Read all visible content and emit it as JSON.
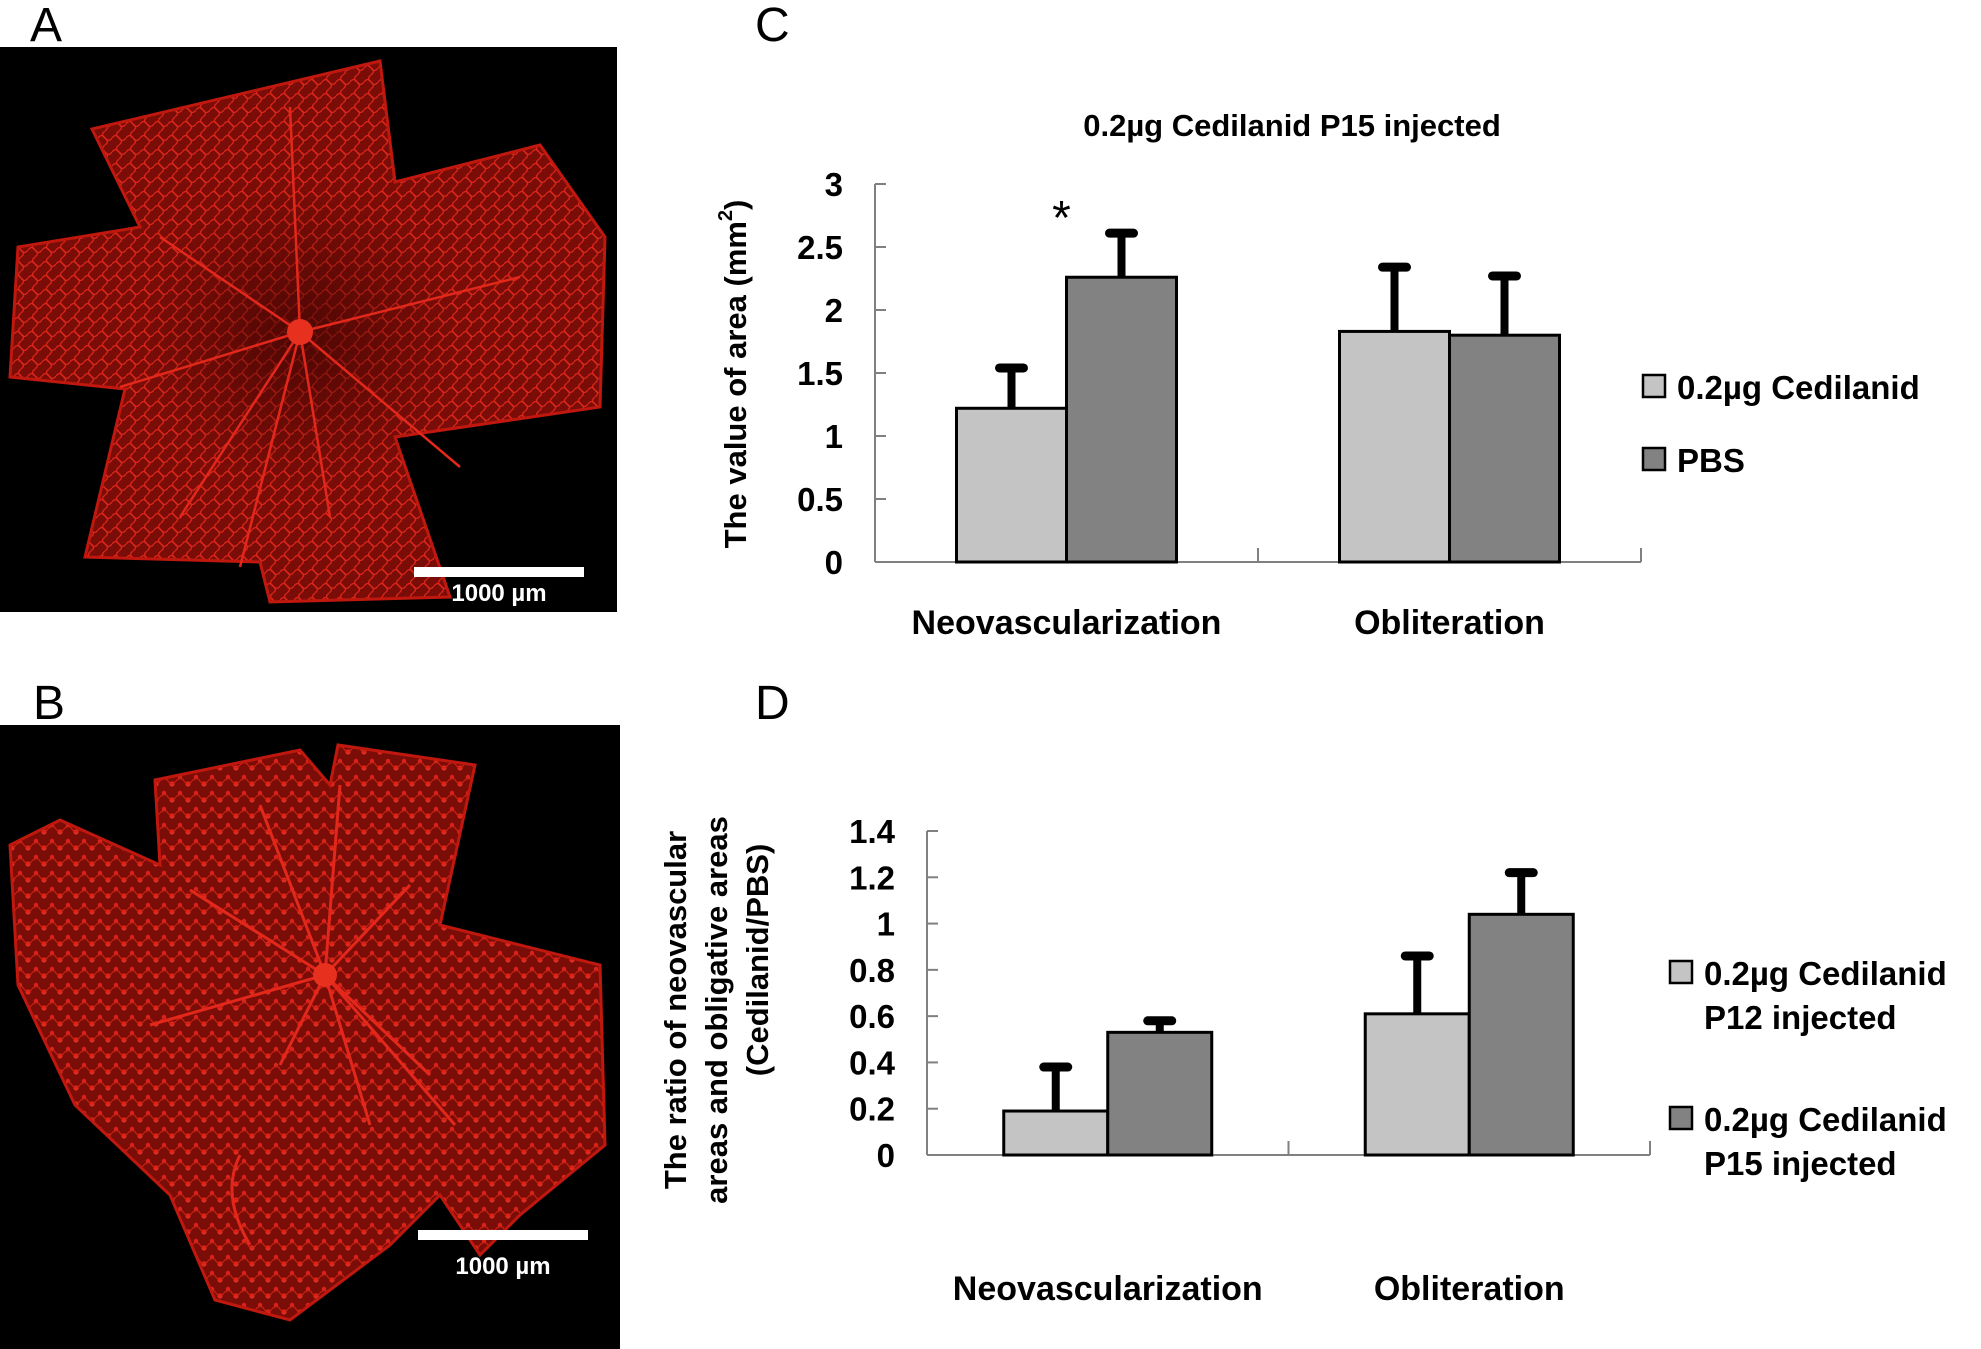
{
  "panels": {
    "A": {
      "letter": "A",
      "scale_label": "1000 µm"
    },
    "B": {
      "letter": "B",
      "scale_label": "1000 µm"
    },
    "C": {
      "letter": "C"
    },
    "D": {
      "letter": "D"
    }
  },
  "colors": {
    "series_light": "#c4c4c4",
    "series_dark": "#828282",
    "stain": "#d21a10",
    "background_micro": "#000000"
  },
  "chart_data": [
    {
      "id": "C",
      "type": "bar",
      "title": "0.2µg Cedilanid P15 injected",
      "xlabel": "",
      "ylabel": "The value of area (mm²)",
      "ylabel_main": "The value of area (mm",
      "ylabel_sup": "2",
      "ylabel_end": ")",
      "ylim": [
        0,
        3
      ],
      "yticks": [
        "0",
        "0.5",
        "1",
        "1.5",
        "2",
        "2.5",
        "3"
      ],
      "ytick_values": [
        0,
        0.5,
        1,
        1.5,
        2,
        2.5,
        3
      ],
      "categories": [
        "Neovascularization",
        "Obliteration"
      ],
      "series": [
        {
          "name": "0.2µg Cedilanid",
          "values": [
            1.22,
            1.83
          ],
          "errors": [
            0.32,
            0.51
          ]
        },
        {
          "name": "PBS",
          "values": [
            2.26,
            1.8
          ],
          "errors": [
            0.35,
            0.47
          ]
        }
      ],
      "annotations": [
        {
          "text": "*",
          "category": "Neovascularization"
        }
      ],
      "legend": [
        "0.2µg Cedilanid",
        "PBS"
      ],
      "legend_position": "right",
      "grid": false
    },
    {
      "id": "D",
      "type": "bar",
      "title": "",
      "xlabel": "",
      "ylabel_lines": [
        "The ratio of neovascular",
        "areas and obligative areas",
        "(Cedilanid/PBS)"
      ],
      "ylim": [
        0,
        1.4
      ],
      "yticks": [
        "0",
        "0.2",
        "0.4",
        "0.6",
        "0.8",
        "1",
        "1.2",
        "1.4"
      ],
      "ytick_values": [
        0,
        0.2,
        0.4,
        0.6,
        0.8,
        1.0,
        1.2,
        1.4
      ],
      "categories": [
        "Neovascularization",
        "Obliteration"
      ],
      "series": [
        {
          "name": "0.2µg Cedilanid P12 injected",
          "values": [
            0.19,
            0.61
          ],
          "errors": [
            0.19,
            0.25
          ]
        },
        {
          "name": "0.2µg Cedilanid P15 injected",
          "values": [
            0.53,
            1.04
          ],
          "errors": [
            0.05,
            0.18
          ]
        }
      ],
      "legend": [
        [
          "0.2µg Cedilanid",
          "P12 injected"
        ],
        [
          "0.2µg Cedilanid",
          "P15 injected"
        ]
      ],
      "legend_position": "right",
      "grid": false
    }
  ]
}
